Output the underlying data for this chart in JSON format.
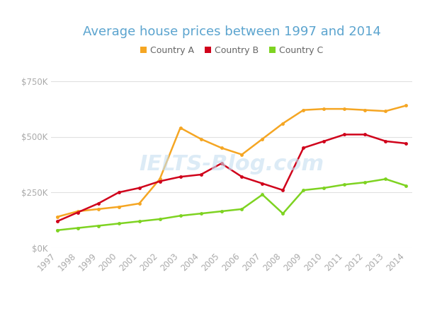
{
  "title": "Average house prices between 1997 and 2014",
  "years": [
    1997,
    1998,
    1999,
    2000,
    2001,
    2002,
    2003,
    2004,
    2005,
    2006,
    2007,
    2008,
    2009,
    2010,
    2011,
    2012,
    2013,
    2014
  ],
  "country_a": [
    140000,
    165000,
    175000,
    185000,
    200000,
    310000,
    540000,
    490000,
    450000,
    420000,
    490000,
    560000,
    620000,
    625000,
    625000,
    620000,
    615000,
    640000
  ],
  "country_b": [
    120000,
    160000,
    200000,
    250000,
    270000,
    300000,
    320000,
    330000,
    380000,
    320000,
    290000,
    260000,
    450000,
    480000,
    510000,
    510000,
    480000,
    470000
  ],
  "country_c": [
    80000,
    90000,
    100000,
    110000,
    120000,
    130000,
    145000,
    155000,
    165000,
    175000,
    240000,
    155000,
    260000,
    270000,
    285000,
    295000,
    310000,
    280000
  ],
  "color_a": "#f5a623",
  "color_b": "#d0021b",
  "color_c": "#7ed321",
  "title_color": "#5ba4cf",
  "ylim": [
    0,
    800000
  ],
  "yticks": [
    0,
    250000,
    500000,
    750000
  ],
  "ytick_labels": [
    "$0K",
    "$250K",
    "$500K",
    "$750K"
  ],
  "background_color": "#ffffff",
  "grid_color": "#e0e0e0",
  "tick_color": "#aaaaaa",
  "legend_labels": [
    "Country A",
    "Country B",
    "Country C"
  ],
  "marker": "o",
  "marker_size": 3.5,
  "line_width": 1.8,
  "watermark_color": "#c5dff0",
  "watermark_alpha": 0.6
}
